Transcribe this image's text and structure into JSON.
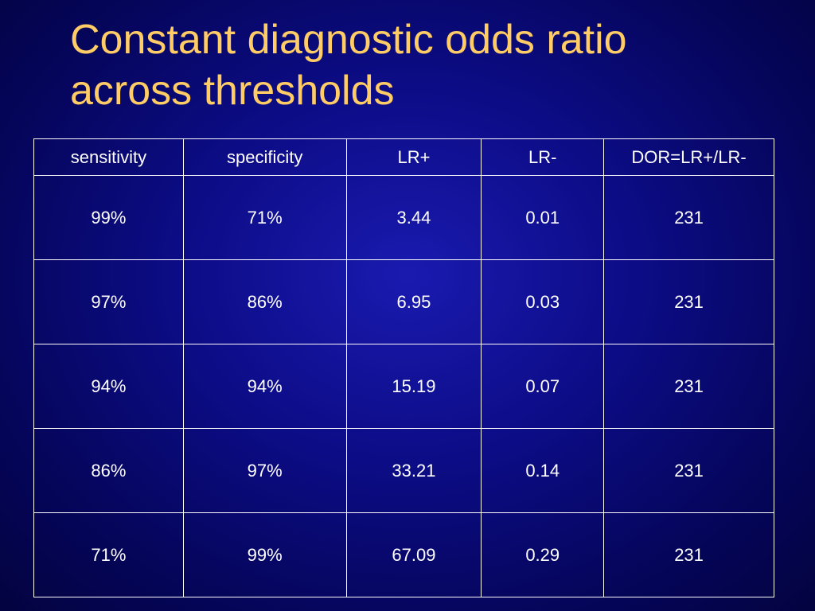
{
  "slide": {
    "title_line1": "Constant diagnostic odds ratio",
    "title_line2": "across thresholds"
  },
  "table": {
    "headers": [
      "sensitivity",
      "specificity",
      "LR+",
      "LR-",
      "DOR=LR+/LR-"
    ],
    "rows": [
      [
        "99%",
        "71%",
        "3.44",
        "0.01",
        "231"
      ],
      [
        "97%",
        "86%",
        "6.95",
        "0.03",
        "231"
      ],
      [
        "94%",
        "94%",
        "15.19",
        "0.07",
        "231"
      ],
      [
        "86%",
        "97%",
        "33.21",
        "0.14",
        "231"
      ],
      [
        "71%",
        "99%",
        "67.09",
        "0.29",
        "231"
      ]
    ]
  },
  "colors": {
    "title": "#ffcc66",
    "text": "#ffffff",
    "background": "#0c0c86"
  }
}
